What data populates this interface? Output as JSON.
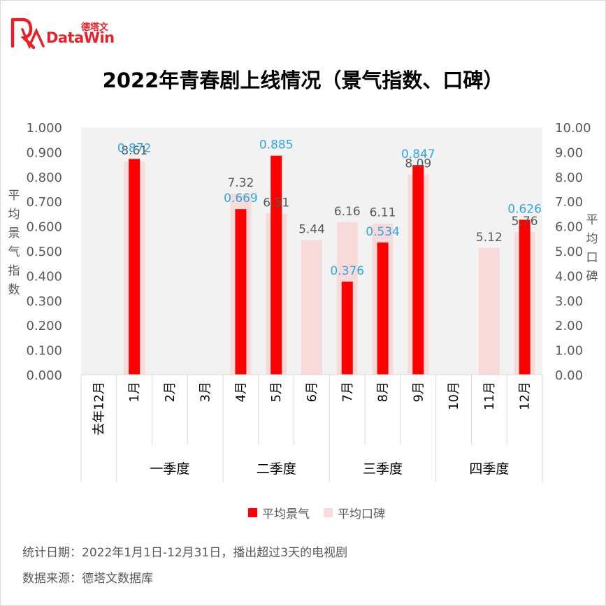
{
  "brand": {
    "name_cn": "德塔文",
    "name_en": "DataWin",
    "color": "#e8202a"
  },
  "title": "2022年青春剧上线情况（景气指数、口碑）",
  "legend": {
    "series1": "平均景气",
    "series2": "平均口碑"
  },
  "footer": {
    "line1": "统计日期：2022年1月1日-12月31日，播出超过3天的电视剧",
    "line2": "数据来源：德塔文数据库"
  },
  "chart_data": {
    "type": "bar",
    "title": "2022年青春剧上线情况（景气指数、口碑）",
    "categories": [
      "去年12月",
      "1月",
      "2月",
      "3月",
      "4月",
      "5月",
      "6月",
      "7月",
      "8月",
      "9月",
      "10月",
      "11月",
      "12月"
    ],
    "groups": [
      {
        "label": "一季度",
        "from": 1,
        "to": 3
      },
      {
        "label": "二季度",
        "from": 4,
        "to": 6
      },
      {
        "label": "三季度",
        "from": 7,
        "to": 9
      },
      {
        "label": "四季度",
        "from": 10,
        "to": 12
      }
    ],
    "ylabel_left": "平均景气指数",
    "ylabel_right": "平均口碑",
    "ylim_left": [
      0,
      1.0
    ],
    "ylim_right": [
      0,
      10.0
    ],
    "yticks_left": [
      "0.000",
      "0.100",
      "0.200",
      "0.300",
      "0.400",
      "0.500",
      "0.600",
      "0.700",
      "0.800",
      "0.900",
      "1.000"
    ],
    "yticks_right": [
      "0.00",
      "1.00",
      "2.00",
      "3.00",
      "4.00",
      "5.00",
      "6.00",
      "7.00",
      "8.00",
      "9.00",
      "10.00"
    ],
    "series": [
      {
        "name": "平均景气",
        "axis": "left",
        "color": "#ff0000",
        "label_color": "#2fa6e0",
        "values": [
          null,
          0.872,
          null,
          null,
          0.669,
          0.885,
          null,
          0.376,
          0.534,
          0.847,
          null,
          null,
          0.626
        ],
        "labels": [
          "",
          "0.872",
          "",
          "",
          "0.669",
          "0.885",
          "",
          "0.376",
          "0.534",
          "0.847",
          "",
          "",
          "0.626"
        ]
      },
      {
        "name": "平均口碑",
        "axis": "right",
        "color": "#f8dada",
        "label_color": "#595959",
        "values": [
          null,
          8.61,
          null,
          null,
          7.32,
          6.51,
          5.44,
          6.16,
          6.11,
          8.09,
          null,
          5.12,
          5.76
        ],
        "labels": [
          "",
          "8.61",
          "",
          "",
          "7.32",
          "6.51",
          "5.44",
          "6.16",
          "6.11",
          "8.09",
          "",
          "5.12",
          "5.76"
        ]
      }
    ],
    "background_color": "#f2f2f2",
    "grid": false,
    "legend_position": "bottom"
  }
}
